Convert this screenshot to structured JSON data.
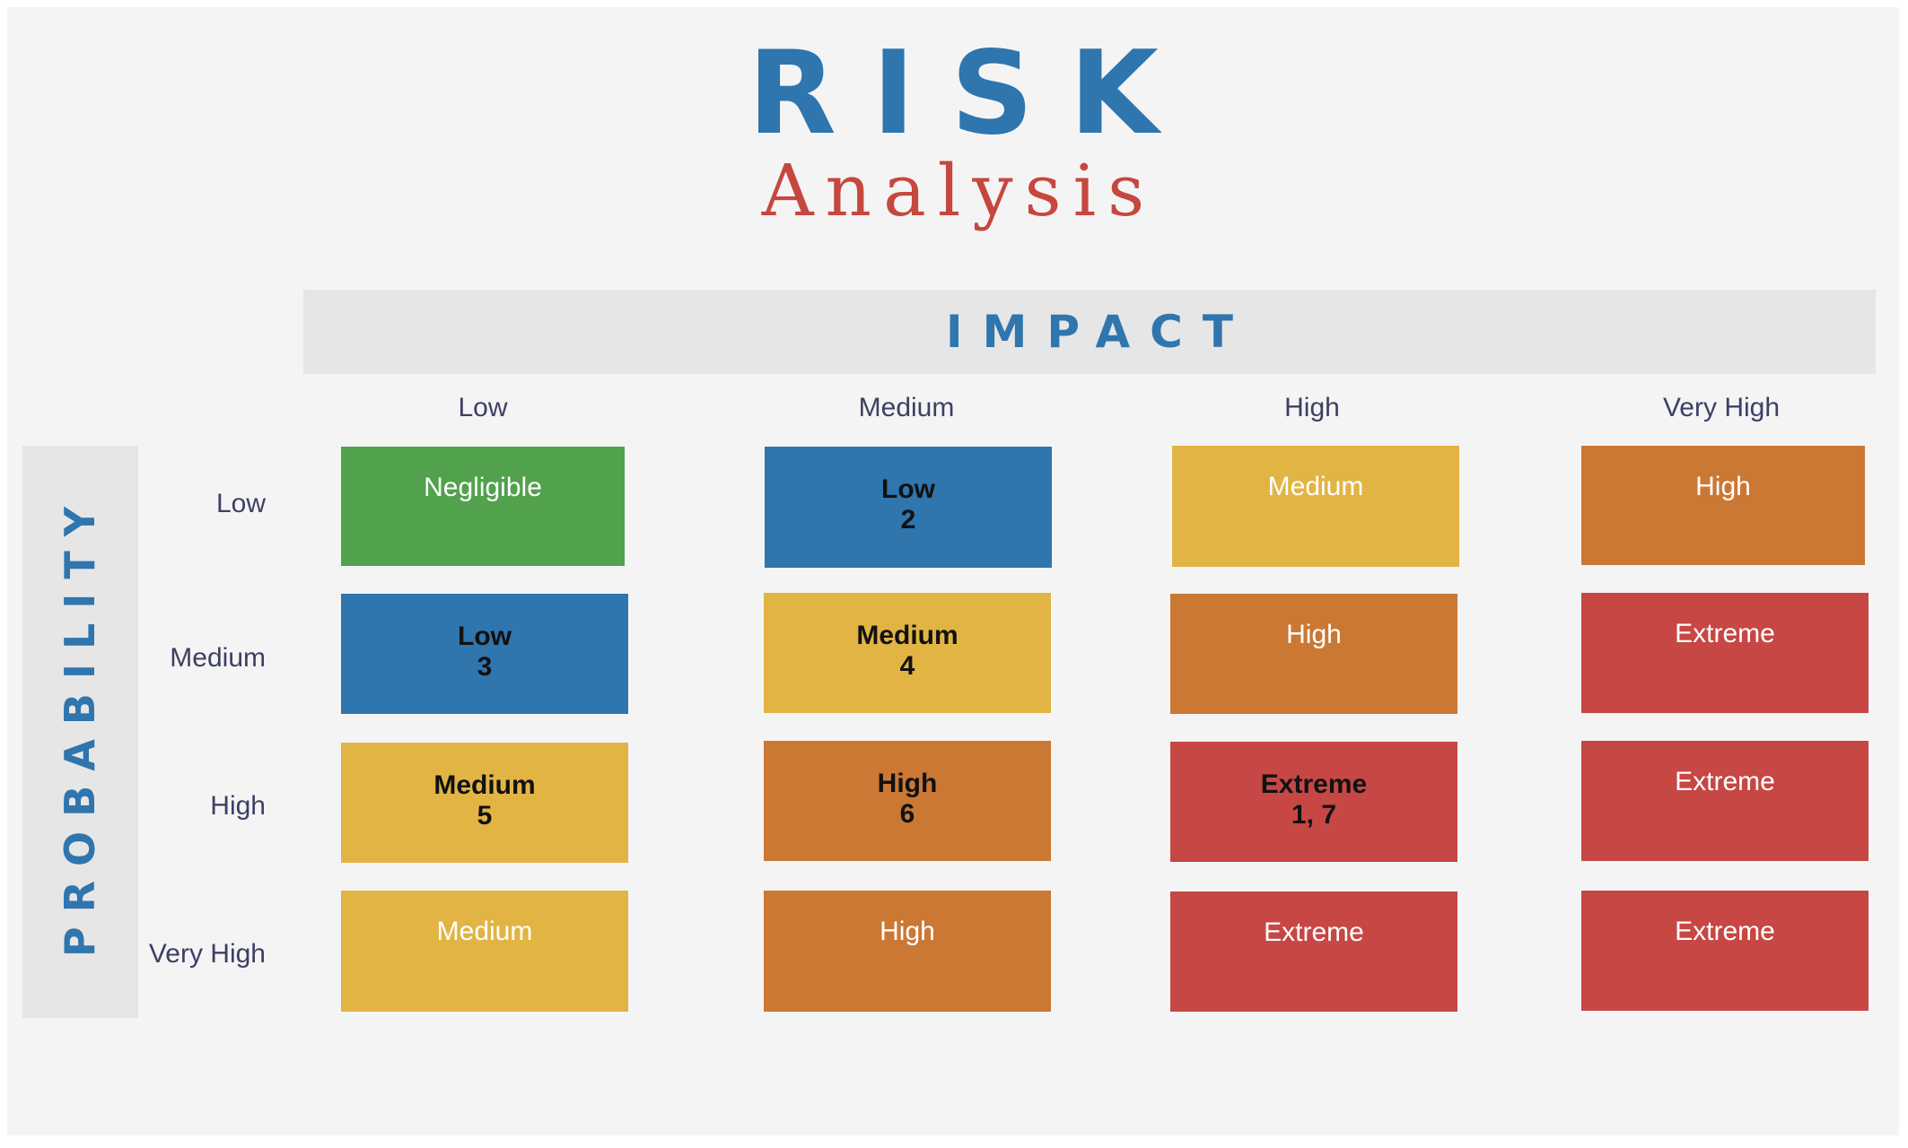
{
  "title": "RISK",
  "subtitle": "Analysis",
  "impact_axis": {
    "label": "IMPACT",
    "columns": [
      "Low",
      "Medium",
      "High",
      "Very High"
    ]
  },
  "probability_axis": {
    "label": "PROBABILITY",
    "rows": [
      "Low",
      "Medium",
      "High",
      "Very High"
    ]
  },
  "risk_colors": {
    "Negligible": "#52a14d",
    "Low": "#2f75ae",
    "Medium": "#e2b444",
    "High": "#cb7834",
    "Extreme": "#c64744"
  },
  "matrix": [
    [
      {
        "level": "Negligible",
        "ids": ""
      },
      {
        "level": "Low",
        "ids": "2"
      },
      {
        "level": "Medium",
        "ids": ""
      },
      {
        "level": "High",
        "ids": ""
      }
    ],
    [
      {
        "level": "Low",
        "ids": "3"
      },
      {
        "level": "Medium",
        "ids": "4"
      },
      {
        "level": "High",
        "ids": ""
      },
      {
        "level": "Extreme",
        "ids": ""
      }
    ],
    [
      {
        "level": "Medium",
        "ids": "5"
      },
      {
        "level": "High",
        "ids": "6"
      },
      {
        "level": "Extreme",
        "ids": "1, 7"
      },
      {
        "level": "Extreme",
        "ids": ""
      }
    ],
    [
      {
        "level": "Medium",
        "ids": ""
      },
      {
        "level": "High",
        "ids": ""
      },
      {
        "level": "Extreme",
        "ids": ""
      },
      {
        "level": "Extreme",
        "ids": ""
      }
    ]
  ]
}
